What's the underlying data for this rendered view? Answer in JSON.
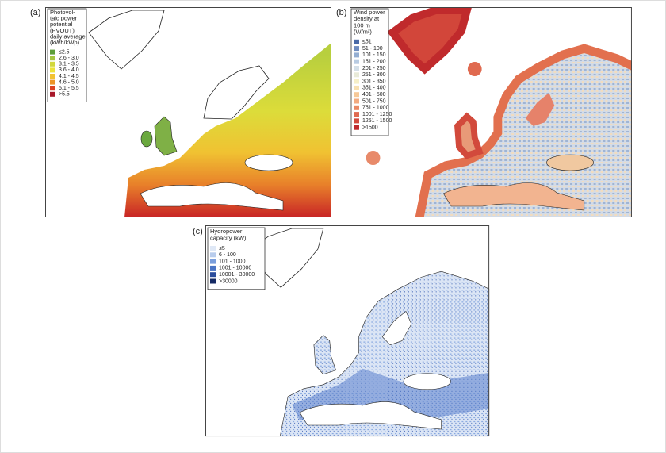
{
  "panels": [
    {
      "label": "(a)",
      "legend": {
        "title": [
          "Photovol-",
          "taic power",
          "potential",
          "(PVOUT)",
          "daily average",
          "(kWh/kWp)"
        ],
        "items": [
          {
            "label": "≤2.5",
            "color": "#5d9e3a"
          },
          {
            "label": "2.6 - 3.0",
            "color": "#a6c742"
          },
          {
            "label": "3.1 - 3.5",
            "color": "#d2d83c"
          },
          {
            "label": "3.6 - 4.0",
            "color": "#ece33a"
          },
          {
            "label": "4.1 - 4.5",
            "color": "#f2c232"
          },
          {
            "label": "4.6 - 5.0",
            "color": "#ec9528"
          },
          {
            "label": "5.1 - 5.5",
            "color": "#dc4222"
          },
          {
            "label": ">5.5",
            "color": "#a8182a"
          }
        ]
      }
    },
    {
      "label": "(b)",
      "legend": {
        "title": [
          "Wind power",
          "density at",
          "100 m",
          "(W/m²)"
        ],
        "items": [
          {
            "label": "≤51",
            "color": "#4a6aa8"
          },
          {
            "label": "51 - 100",
            "color": "#6f8cc0"
          },
          {
            "label": "101 - 150",
            "color": "#94aed2"
          },
          {
            "label": "151 - 200",
            "color": "#b8cbe2"
          },
          {
            "label": "201 - 250",
            "color": "#d4dfe8"
          },
          {
            "label": "251 - 300",
            "color": "#e8ead8"
          },
          {
            "label": "301 - 350",
            "color": "#f6efc8"
          },
          {
            "label": "351 - 400",
            "color": "#f8e0b0"
          },
          {
            "label": "401 - 500",
            "color": "#f6c898"
          },
          {
            "label": "501 - 750",
            "color": "#f2aa80"
          },
          {
            "label": "751 - 1000",
            "color": "#ea8a66"
          },
          {
            "label": "1001 - 1250",
            "color": "#e06a50"
          },
          {
            "label": "1251 - 1500",
            "color": "#d24a3c"
          },
          {
            "label": ">1500",
            "color": "#c02a2c"
          }
        ]
      }
    },
    {
      "label": "(c)",
      "legend": {
        "title": [
          "Hydropower",
          "capacity (kW)"
        ],
        "items": [
          {
            "label": "≤5",
            "color": "#dfe8f6"
          },
          {
            "label": "6 - 100",
            "color": "#b8ccec"
          },
          {
            "label": "101 - 1000",
            "color": "#7a9edc"
          },
          {
            "label": "1001 - 10000",
            "color": "#4a74c4"
          },
          {
            "label": "10001 - 30000",
            "color": "#2a4c9c"
          },
          {
            "label": ">30000",
            "color": "#142a64"
          }
        ]
      }
    }
  ]
}
